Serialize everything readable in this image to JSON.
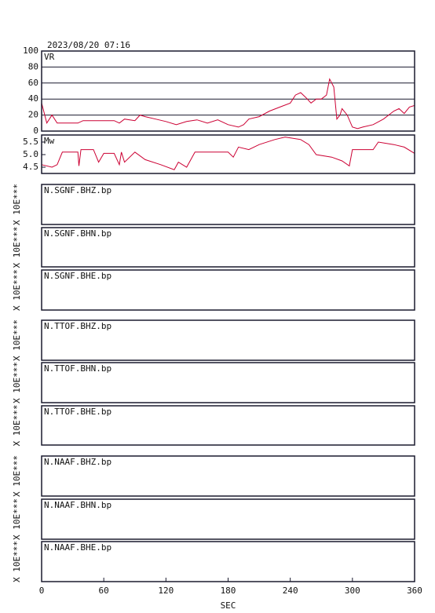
{
  "chart_data": [
    {
      "type": "line",
      "title": "2023/08/20 07:16",
      "label": "VR",
      "color": "#cc0033",
      "xlim": [
        0,
        360
      ],
      "ylim": [
        0,
        100
      ],
      "yticks": [
        0,
        20,
        40,
        60,
        80,
        100
      ],
      "grid": true,
      "x": [
        0,
        5,
        10,
        15,
        20,
        35,
        40,
        55,
        70,
        75,
        80,
        90,
        95,
        100,
        110,
        120,
        130,
        140,
        150,
        160,
        170,
        180,
        190,
        195,
        200,
        210,
        220,
        230,
        240,
        245,
        250,
        255,
        260,
        265,
        270,
        275,
        278,
        282,
        285,
        288,
        290,
        295,
        300,
        305,
        310,
        320,
        330,
        340,
        345,
        350,
        355,
        360
      ],
      "values": [
        35,
        10,
        20,
        10,
        10,
        10,
        13,
        13,
        13,
        10,
        15,
        13,
        20,
        18,
        15,
        12,
        8,
        12,
        14,
        10,
        14,
        8,
        5,
        8,
        15,
        18,
        25,
        30,
        35,
        45,
        48,
        42,
        35,
        40,
        40,
        45,
        65,
        55,
        15,
        20,
        28,
        20,
        5,
        3,
        5,
        8,
        15,
        25,
        28,
        22,
        30,
        32
      ]
    },
    {
      "type": "line",
      "label": "Mw",
      "color": "#cc0033",
      "xlim": [
        0,
        360
      ],
      "ylim": [
        4.25,
        5.78
      ],
      "yticks": [
        {
          "value": 4.5,
          "label": "4.5"
        },
        {
          "value": 5,
          "label": "5.0"
        },
        {
          "value": 5.5,
          "label": "5.5"
        }
      ],
      "grid": false,
      "x": [
        0,
        10,
        15,
        20,
        35,
        36,
        38,
        50,
        55,
        60,
        70,
        75,
        77,
        80,
        90,
        100,
        115,
        128,
        132,
        140,
        148,
        180,
        185,
        190,
        200,
        210,
        225,
        235,
        250,
        258,
        265,
        280,
        290,
        297,
        300,
        320,
        325,
        340,
        350,
        360
      ],
      "values": [
        4.6,
        4.5,
        4.6,
        5.1,
        5.1,
        4.55,
        5.2,
        5.2,
        4.7,
        5.05,
        5.05,
        4.6,
        5.1,
        4.7,
        5.1,
        4.8,
        4.6,
        4.4,
        4.7,
        4.5,
        5.1,
        5.1,
        4.9,
        5.3,
        5.2,
        5.4,
        5.6,
        5.7,
        5.6,
        5.4,
        5.0,
        4.9,
        4.75,
        4.55,
        5.2,
        5.2,
        5.5,
        5.4,
        5.3,
        5.05
      ]
    },
    {
      "type": "waveform",
      "label": "N.SGNF.BHZ.bp",
      "ylabel": "X 10E***"
    },
    {
      "type": "waveform",
      "label": "N.SGNF.BHN.bp",
      "ylabel": "X 10E***"
    },
    {
      "type": "waveform",
      "label": "N.SGNF.BHE.bp",
      "ylabel": "X 10E***"
    },
    {
      "type": "waveform",
      "label": "N.TTOF.BHZ.bp",
      "ylabel": "X 10E***"
    },
    {
      "type": "waveform",
      "label": "N.TTOF.BHN.bp",
      "ylabel": "X 10E***"
    },
    {
      "type": "waveform",
      "label": "N.TTOF.BHE.bp",
      "ylabel": "X 10E***"
    },
    {
      "type": "waveform",
      "label": "N.NAAF.BHZ.bp",
      "ylabel": "X 10E***"
    },
    {
      "type": "waveform",
      "label": "N.NAAF.BHN.bp",
      "ylabel": "X 10E***"
    },
    {
      "type": "waveform",
      "label": "N.NAAF.BHE.bp",
      "ylabel": "X 10E***",
      "xlabel": "SEC",
      "xlim": [
        0,
        360
      ],
      "xticks": [
        0,
        60,
        120,
        180,
        240,
        300,
        360
      ]
    }
  ]
}
